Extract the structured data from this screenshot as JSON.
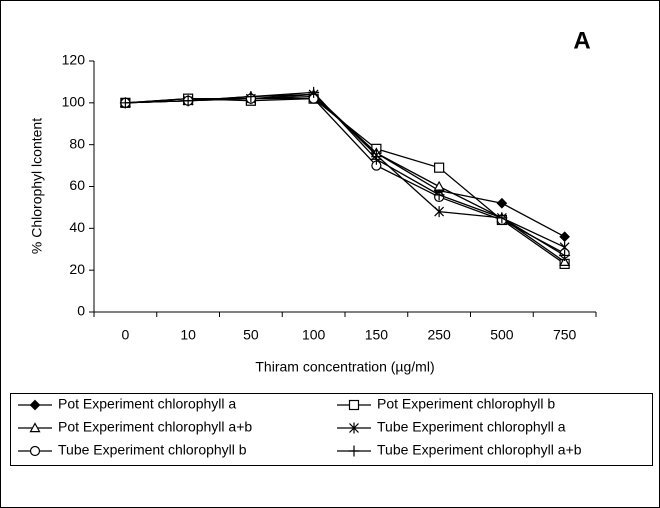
{
  "chart_data": {
    "type": "line",
    "annotation": "A",
    "x_label": "Thiram concentration (µg/ml)",
    "y_label": "% Chlorophyl lcontent",
    "categories": [
      "0",
      "10",
      "50",
      "100",
      "150",
      "250",
      "500",
      "750"
    ],
    "ylim": [
      0,
      120
    ],
    "yticks": [
      0,
      20,
      40,
      60,
      80,
      100,
      120
    ],
    "series": [
      {
        "name": "Pot Experiment chlorophyll a",
        "color": "#000000",
        "marker": "diamond",
        "values": [
          100,
          102,
          102,
          103,
          76,
          58,
          52,
          36
        ]
      },
      {
        "name": "Pot Experiment  chlorophyll b",
        "color": "#000000",
        "marker": "square",
        "values": [
          100,
          102,
          101,
          102,
          78,
          69,
          44,
          23
        ]
      },
      {
        "name": "Pot Experiment chlorophyll a+b",
        "color": "#000000",
        "marker": "triangle",
        "values": [
          100,
          101,
          103,
          104,
          76,
          60,
          45,
          24
        ]
      },
      {
        "name": "Tube Experiment chlorophyll a",
        "color": "#000000",
        "marker": "asterisk",
        "values": [
          100,
          101,
          102,
          104,
          75,
          48,
          45,
          31
        ]
      },
      {
        "name": "Tube Experiment  chlorophyll b",
        "color": "#000000",
        "marker": "circle",
        "values": [
          100,
          101,
          102,
          102,
          70,
          55,
          44,
          28
        ]
      },
      {
        "name": "Tube Experiment  chlorophyll a+b",
        "color": "#000000",
        "marker": "plus",
        "values": [
          100,
          101,
          103,
          105,
          73,
          56,
          45,
          27
        ]
      }
    ]
  }
}
